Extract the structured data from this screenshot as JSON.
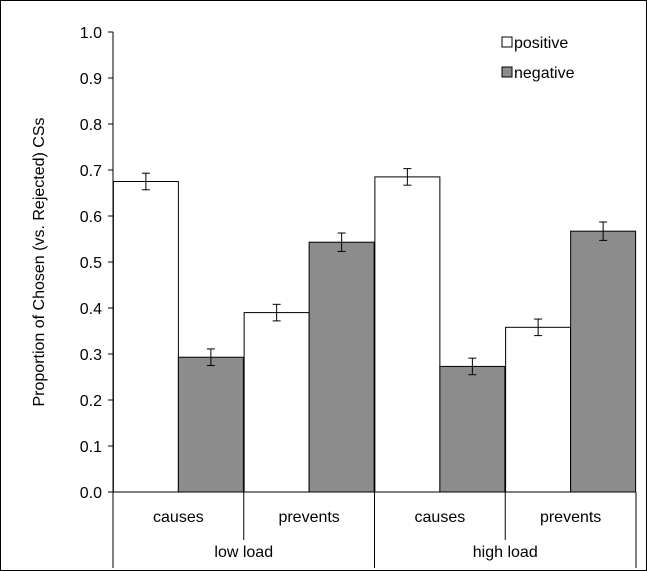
{
  "chart_data": {
    "type": "bar",
    "ylabel": "Proportion of Chosen (vs. Rejected) CSs",
    "ylim": [
      0,
      1.0
    ],
    "y_ticks": [
      "0.0",
      "0.1",
      "0.2",
      "0.3",
      "0.4",
      "0.5",
      "0.6",
      "0.7",
      "0.8",
      "0.9",
      "1.0"
    ],
    "categories": [
      "causes",
      "prevents",
      "causes",
      "prevents"
    ],
    "groups": [
      {
        "label": "low load",
        "span": 2
      },
      {
        "label": "high load",
        "span": 2
      }
    ],
    "series": [
      {
        "name": "positive",
        "color": "#ffffff",
        "values": [
          0.675,
          0.39,
          0.685,
          0.358
        ],
        "errors": [
          0.018,
          0.018,
          0.018,
          0.018
        ]
      },
      {
        "name": "negative",
        "color": "#8c8c8c",
        "values": [
          0.293,
          0.543,
          0.273,
          0.567
        ],
        "errors": [
          0.018,
          0.02,
          0.018,
          0.02
        ]
      }
    ],
    "legend_position": "top-right",
    "grid": false
  }
}
